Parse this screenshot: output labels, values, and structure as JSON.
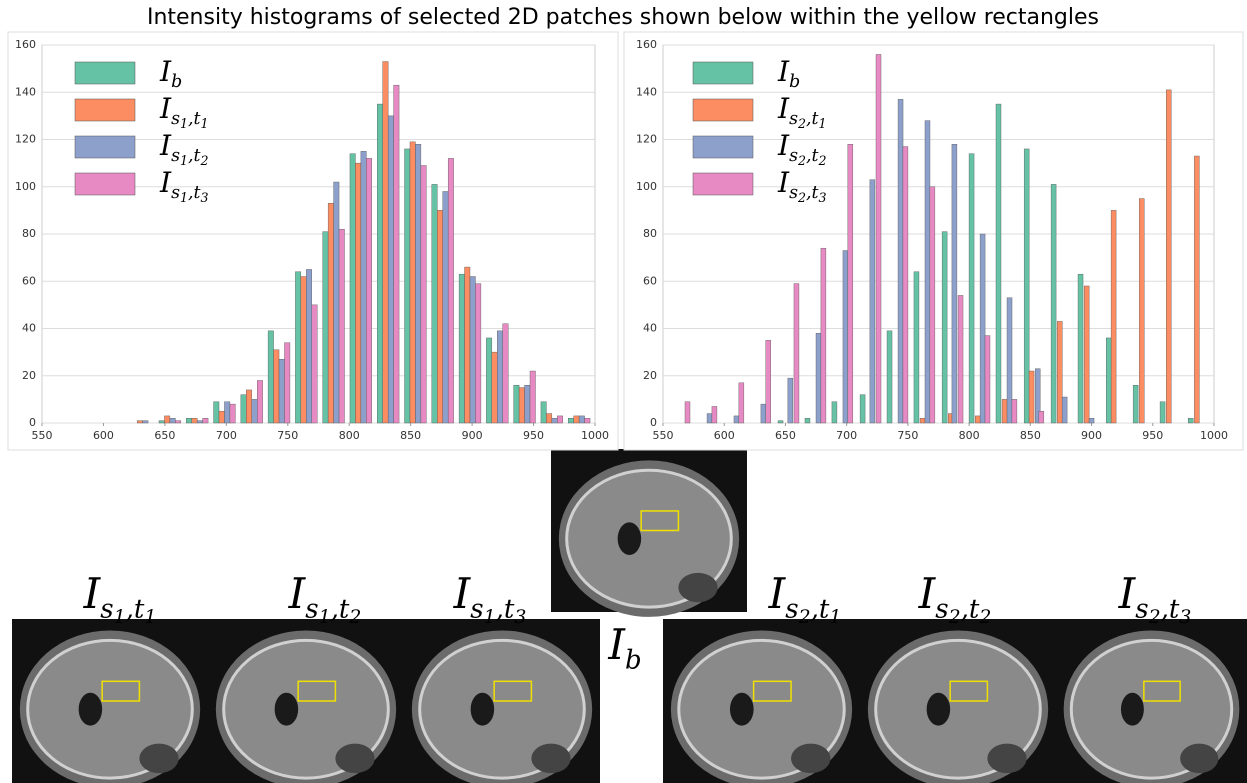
{
  "figure_title": "Intensity histograms of selected 2D patches shown below within the yellow rectangles",
  "chart_data": [
    {
      "type": "histogram",
      "legend": "upper left",
      "grid": true,
      "xlim": [
        550,
        1000
      ],
      "xticks": [
        550,
        600,
        650,
        700,
        750,
        800,
        850,
        900,
        950,
        1000
      ],
      "ylim": [
        0,
        160
      ],
      "yticks": [
        0,
        20,
        40,
        60,
        80,
        100,
        120,
        140,
        160
      ],
      "bins": [
        623,
        645.2,
        667.4,
        689.6,
        711.8,
        734,
        756.2,
        778.4,
        800.6,
        822.8,
        845,
        867.2,
        889.4,
        911.6,
        933.8,
        956,
        978.2,
        1000.4
      ],
      "series": [
        {
          "name": "Ib",
          "color": "#66c2a5",
          "values": [
            0,
            1,
            2,
            9,
            12,
            39,
            64,
            81,
            114,
            135,
            116,
            101,
            63,
            36,
            16,
            9,
            2
          ]
        },
        {
          "name": "Is1,t1",
          "color": "#fc8d62",
          "values": [
            1,
            3,
            2,
            5,
            14,
            31,
            62,
            93,
            110,
            153,
            119,
            90,
            66,
            30,
            15,
            4,
            3
          ]
        },
        {
          "name": "Is1,t2",
          "color": "#8da0cb",
          "values": [
            1,
            2,
            1,
            9,
            10,
            27,
            65,
            102,
            115,
            130,
            118,
            98,
            62,
            39,
            16,
            2,
            3
          ]
        },
        {
          "name": "Is1,t3",
          "color": "#e78ac3",
          "values": [
            0,
            1,
            2,
            8,
            18,
            34,
            50,
            82,
            112,
            143,
            109,
            112,
            59,
            42,
            22,
            3,
            2
          ]
        }
      ]
    },
    {
      "type": "bar",
      "legend": "upper left",
      "grid": true,
      "xlim": [
        550,
        1000
      ],
      "xticks": [
        550,
        600,
        650,
        700,
        750,
        800,
        850,
        900,
        950,
        1000
      ],
      "ylim": [
        0,
        160
      ],
      "yticks": [
        0,
        20,
        40,
        60,
        80,
        100,
        120,
        140,
        160
      ],
      "series": [
        {
          "name": "Ib",
          "color": "#66c2a5",
          "x": [
            646,
            668,
            690,
            713,
            735,
            757,
            780,
            802,
            824,
            847,
            869,
            891,
            914,
            936,
            958,
            981
          ],
          "values": [
            1,
            2,
            9,
            12,
            39,
            64,
            81,
            114,
            135,
            116,
            101,
            63,
            36,
            16,
            9,
            2
          ]
        },
        {
          "name": "Is2,t1",
          "color": "#fc8d62",
          "x": [
            762,
            785,
            807,
            829,
            851,
            874,
            896,
            918,
            941,
            963,
            986
          ],
          "values": [
            2,
            4,
            3,
            10,
            22,
            43,
            58,
            90,
            95,
            141,
            113
          ]
        },
        {
          "name": "Is2,t2",
          "color": "#8da0cb",
          "x": [
            588,
            610,
            632,
            654,
            677,
            699,
            721,
            744,
            766,
            788,
            811,
            833,
            856,
            878,
            900
          ],
          "values": [
            4,
            3,
            8,
            19,
            38,
            73,
            103,
            137,
            128,
            118,
            80,
            53,
            23,
            11,
            2
          ]
        },
        {
          "name": "Is2,t3",
          "color": "#e78ac3",
          "x": [
            570,
            592,
            614,
            636,
            659,
            681,
            703,
            726,
            748,
            770,
            793,
            815,
            837,
            859
          ],
          "values": [
            9,
            7,
            17,
            35,
            59,
            74,
            118,
            156,
            117,
            100,
            54,
            37,
            10,
            5
          ]
        }
      ]
    }
  ],
  "image_labels": [
    "Is1,t1",
    "Is1,t2",
    "Is1,t3",
    "Ib",
    "Is2,t1",
    "Is2,t2",
    "Is2,t3"
  ]
}
